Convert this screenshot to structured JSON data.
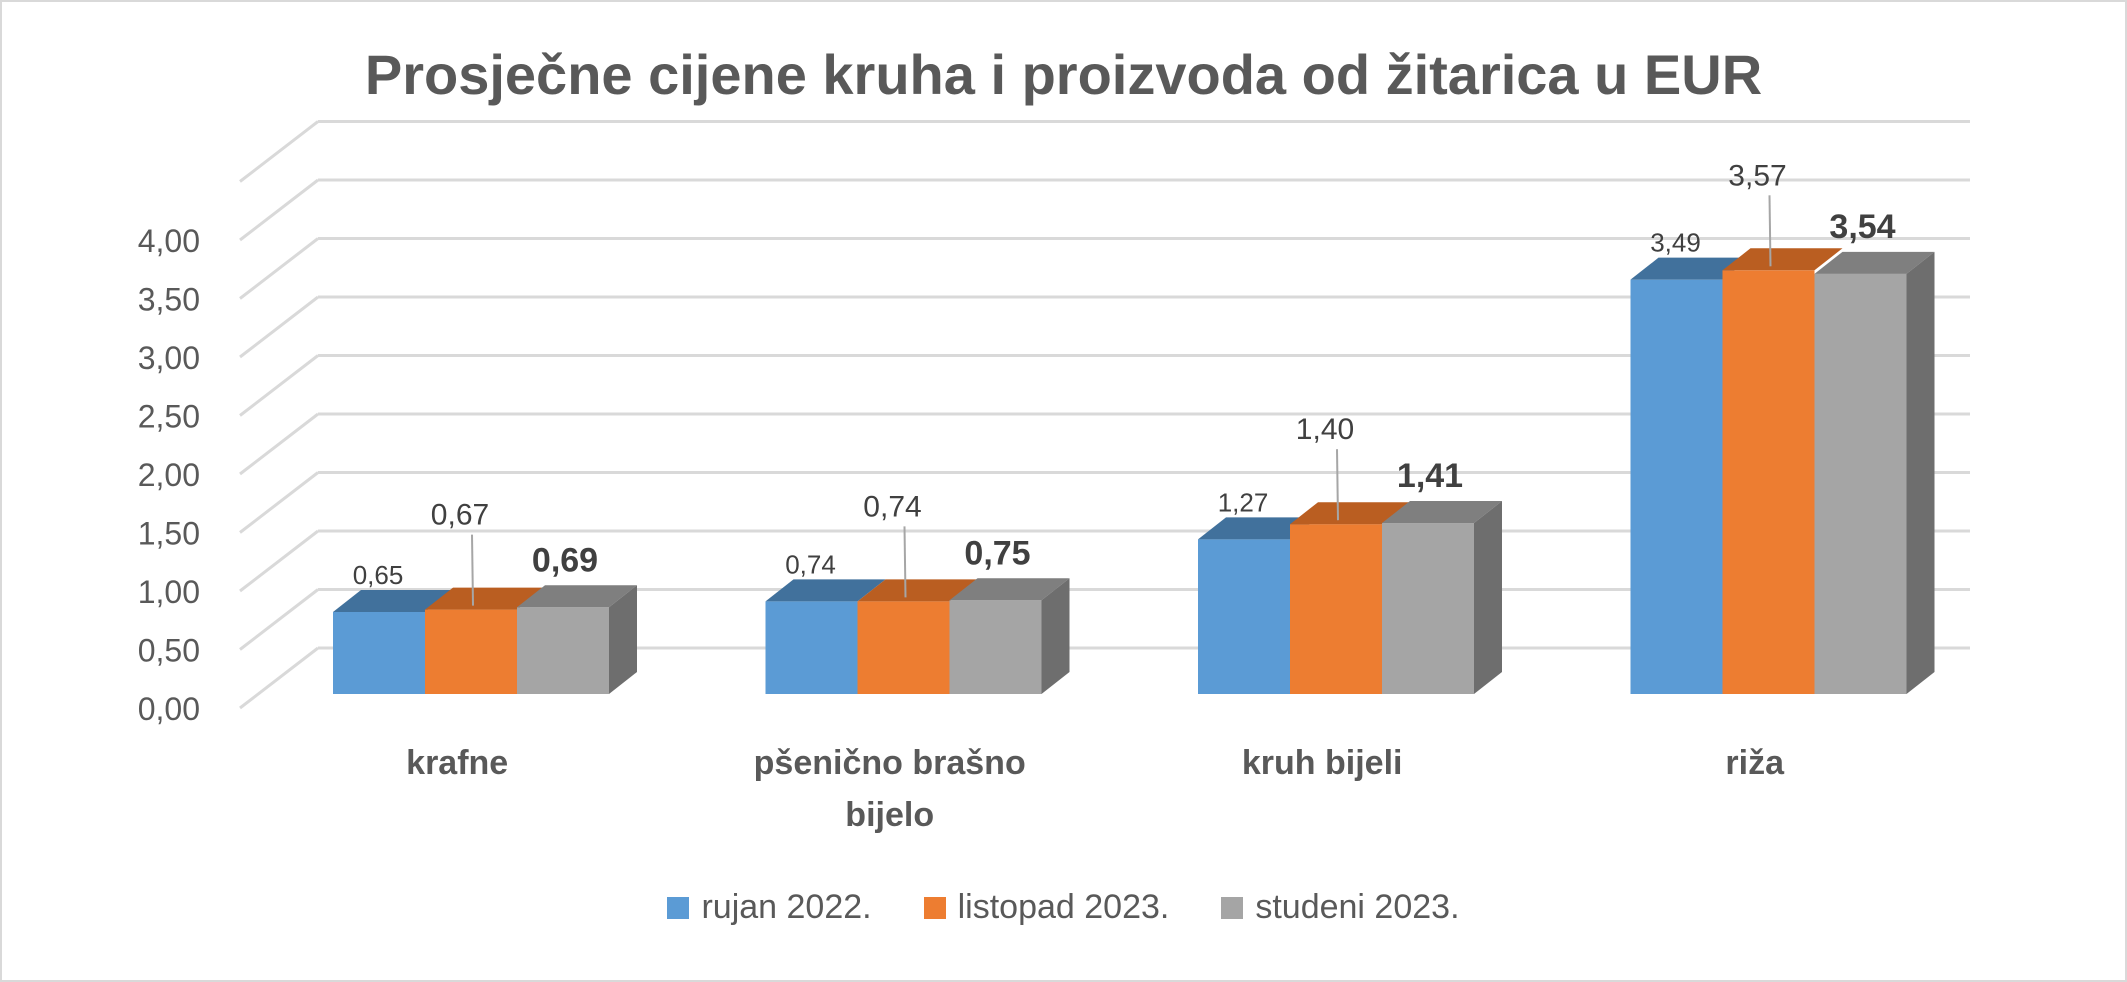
{
  "chart_data": {
    "type": "bar",
    "title": "Prosječne cijene kruha i proizvoda od žitarica u EUR",
    "categories": [
      "krafne",
      "pšenično brašno bijelo",
      "kruh bijeli",
      "riža"
    ],
    "category_lines": [
      [
        "krafne"
      ],
      [
        "pšenično brašno",
        "bijelo"
      ],
      [
        "kruh bijeli"
      ],
      [
        "riža"
      ]
    ],
    "series": [
      {
        "name": "rujan 2022.",
        "values": [
          0.65,
          0.74,
          1.27,
          3.49
        ],
        "labels": [
          "0,65",
          "0,74",
          "1,27",
          "3,49"
        ],
        "color": "#5b9bd5",
        "top_color": "#41719c"
      },
      {
        "name": "listopad 2023.",
        "values": [
          0.67,
          0.74,
          1.4,
          3.57
        ],
        "labels": [
          "0,67",
          "0,74",
          "1,40",
          "3,57"
        ],
        "color": "#ed7d31",
        "top_color": "#ba5e21"
      },
      {
        "name": "studeni 2023.",
        "values": [
          0.69,
          0.75,
          1.41,
          3.54
        ],
        "labels": [
          "0,69",
          "0,75",
          "1,41",
          "3,54"
        ],
        "color": "#a5a5a5",
        "top_color": "#7f7f7f",
        "side_color": "#6e6e6e"
      }
    ],
    "y_ticks": [
      "0,00",
      "0,50",
      "1,00",
      "1,50",
      "2,00",
      "2,50",
      "3,00",
      "3,50",
      "4,00"
    ],
    "ylim": [
      0,
      4.5
    ],
    "grid": true,
    "legend_position": "bottom",
    "three_d": true
  }
}
